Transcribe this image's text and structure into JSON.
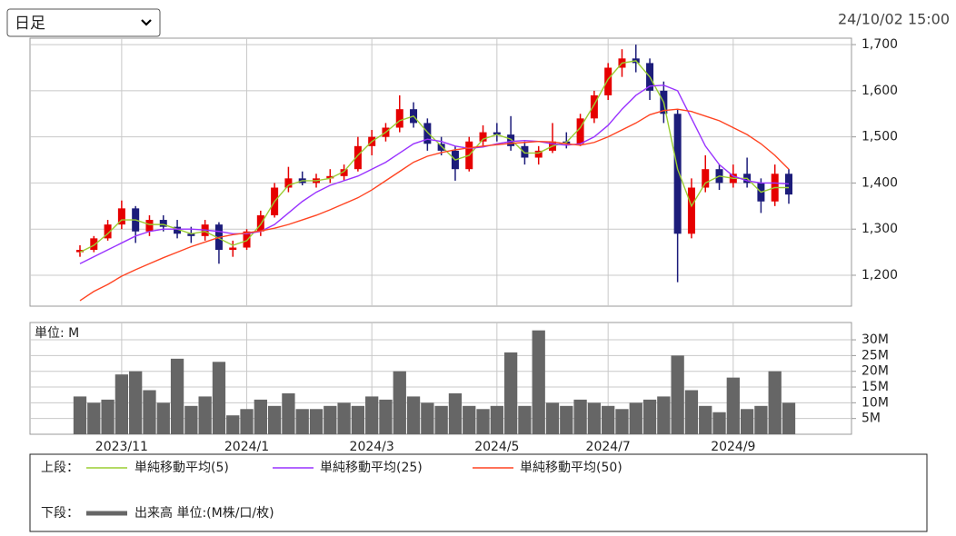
{
  "header": {
    "period_select": "日足",
    "timestamp": "24/10/02 15:00"
  },
  "legend": {
    "upper_label": "上段：",
    "lower_label": "下段："
  },
  "chart_data": [
    {
      "type": "candlestick",
      "up_color": "#e60000",
      "down_color": "#1c1c7a",
      "ylim": [
        1133,
        1714
      ],
      "yticks": [
        {
          "value": 1200,
          "label": "1,200"
        },
        {
          "value": 1300,
          "label": "1,300"
        },
        {
          "value": 1400,
          "label": "1,400"
        },
        {
          "value": 1500,
          "label": "1,500"
        },
        {
          "value": 1600,
          "label": "1,600"
        },
        {
          "value": 1700,
          "label": "1,700"
        }
      ],
      "grid": true,
      "open": [
        1250,
        1255,
        1280,
        1310,
        1345,
        1295,
        1320,
        1305,
        1290,
        1285,
        1310,
        1255,
        1260,
        1295,
        1330,
        1390,
        1410,
        1400,
        1410,
        1415,
        1430,
        1480,
        1500,
        1520,
        1560,
        1530,
        1485,
        1470,
        1430,
        1490,
        1510,
        1505,
        1480,
        1455,
        1470,
        1490,
        1485,
        1540,
        1590,
        1650,
        1670,
        1660,
        1600,
        1550,
        1290,
        1390,
        1430,
        1400,
        1420,
        1400,
        1360,
        1420
      ],
      "high": [
        1265,
        1285,
        1320,
        1362,
        1350,
        1330,
        1330,
        1320,
        1305,
        1320,
        1315,
        1275,
        1300,
        1340,
        1400,
        1435,
        1425,
        1420,
        1430,
        1440,
        1500,
        1515,
        1530,
        1590,
        1575,
        1540,
        1500,
        1480,
        1500,
        1525,
        1530,
        1545,
        1490,
        1480,
        1530,
        1510,
        1550,
        1600,
        1660,
        1690,
        1700,
        1670,
        1620,
        1560,
        1410,
        1460,
        1440,
        1440,
        1455,
        1410,
        1440,
        1430
      ],
      "low": [
        1240,
        1250,
        1275,
        1300,
        1270,
        1285,
        1295,
        1280,
        1270,
        1275,
        1225,
        1240,
        1255,
        1285,
        1325,
        1380,
        1395,
        1390,
        1400,
        1405,
        1425,
        1460,
        1490,
        1510,
        1520,
        1470,
        1460,
        1405,
        1425,
        1480,
        1490,
        1470,
        1440,
        1440,
        1465,
        1475,
        1480,
        1530,
        1580,
        1630,
        1640,
        1580,
        1530,
        1185,
        1280,
        1380,
        1385,
        1390,
        1390,
        1335,
        1350,
        1355
      ],
      "close": [
        1255,
        1280,
        1310,
        1345,
        1295,
        1320,
        1305,
        1290,
        1285,
        1310,
        1255,
        1260,
        1295,
        1330,
        1390,
        1410,
        1400,
        1410,
        1415,
        1430,
        1480,
        1500,
        1520,
        1560,
        1530,
        1485,
        1470,
        1430,
        1490,
        1510,
        1505,
        1480,
        1455,
        1470,
        1490,
        1485,
        1540,
        1590,
        1650,
        1670,
        1660,
        1600,
        1550,
        1290,
        1390,
        1430,
        1400,
        1420,
        1400,
        1360,
        1420,
        1375
      ],
      "series": [
        {
          "name": "単純移動平均(5)",
          "color": "#9acd32",
          "values": [
            1250,
            1265,
            1290,
            1320,
            1320,
            1310,
            1310,
            1300,
            1290,
            1295,
            1280,
            1265,
            1275,
            1310,
            1360,
            1395,
            1405,
            1405,
            1410,
            1425,
            1460,
            1490,
            1510,
            1535,
            1545,
            1510,
            1480,
            1450,
            1460,
            1495,
            1505,
            1495,
            1465,
            1465,
            1480,
            1488,
            1520,
            1570,
            1625,
            1660,
            1665,
            1630,
            1575,
            1430,
            1350,
            1400,
            1415,
            1410,
            1410,
            1380,
            1390,
            1390
          ]
        },
        {
          "name": "単純移動平均(25)",
          "color": "#9933ff",
          "values": [
            1225,
            1240,
            1255,
            1270,
            1285,
            1295,
            1300,
            1300,
            1300,
            1298,
            1295,
            1290,
            1290,
            1295,
            1310,
            1335,
            1360,
            1380,
            1395,
            1405,
            1415,
            1430,
            1445,
            1465,
            1485,
            1495,
            1490,
            1480,
            1475,
            1478,
            1485,
            1490,
            1492,
            1490,
            1485,
            1482,
            1485,
            1500,
            1525,
            1560,
            1590,
            1610,
            1612,
            1600,
            1540,
            1480,
            1440,
            1415,
            1405,
            1400,
            1400,
            1398
          ]
        },
        {
          "name": "単純移動平均(50)",
          "color": "#ff4422",
          "values": [
            1145,
            1165,
            1180,
            1198,
            1212,
            1225,
            1238,
            1250,
            1262,
            1272,
            1282,
            1288,
            1292,
            1296,
            1302,
            1310,
            1320,
            1330,
            1342,
            1355,
            1368,
            1385,
            1405,
            1425,
            1445,
            1458,
            1466,
            1472,
            1476,
            1480,
            1483,
            1486,
            1488,
            1490,
            1489,
            1485,
            1482,
            1488,
            1500,
            1515,
            1530,
            1548,
            1557,
            1560,
            1555,
            1545,
            1535,
            1520,
            1505,
            1485,
            1460,
            1430
          ]
        }
      ]
    },
    {
      "type": "bar",
      "unit_label": "単位: M",
      "categories": [
        null,
        null,
        null,
        "2023/11",
        null,
        null,
        null,
        null,
        null,
        null,
        null,
        null,
        "2024/1",
        null,
        null,
        null,
        null,
        null,
        null,
        null,
        null,
        "2024/3",
        null,
        null,
        null,
        null,
        null,
        null,
        null,
        null,
        "2024/5",
        null,
        null,
        null,
        null,
        null,
        null,
        null,
        "2024/7",
        null,
        null,
        null,
        null,
        null,
        null,
        null,
        null,
        "2024/9",
        null,
        null,
        null,
        null
      ],
      "ylim": [
        0,
        35.5
      ],
      "yticks": [
        {
          "value": 5,
          "label": "5M"
        },
        {
          "value": 10,
          "label": "10M"
        },
        {
          "value": 15,
          "label": "15M"
        },
        {
          "value": 20,
          "label": "20M"
        },
        {
          "value": 25,
          "label": "25M"
        },
        {
          "value": 30,
          "label": "30M"
        }
      ],
      "grid": true,
      "series": [
        {
          "name": "出来高 単位:(M株/口/枚)",
          "color": "#666666",
          "values": [
            12,
            10,
            11,
            19,
            20,
            14,
            10,
            24,
            9,
            12,
            23,
            6,
            8,
            11,
            9,
            13,
            8,
            8,
            9,
            10,
            9,
            12,
            11,
            20,
            12,
            10,
            9,
            13,
            9,
            8,
            9,
            26,
            9,
            33,
            10,
            9,
            11,
            10,
            9,
            8,
            10,
            11,
            12,
            25,
            14,
            9,
            7,
            18,
            8,
            9,
            20,
            10
          ]
        }
      ]
    }
  ]
}
